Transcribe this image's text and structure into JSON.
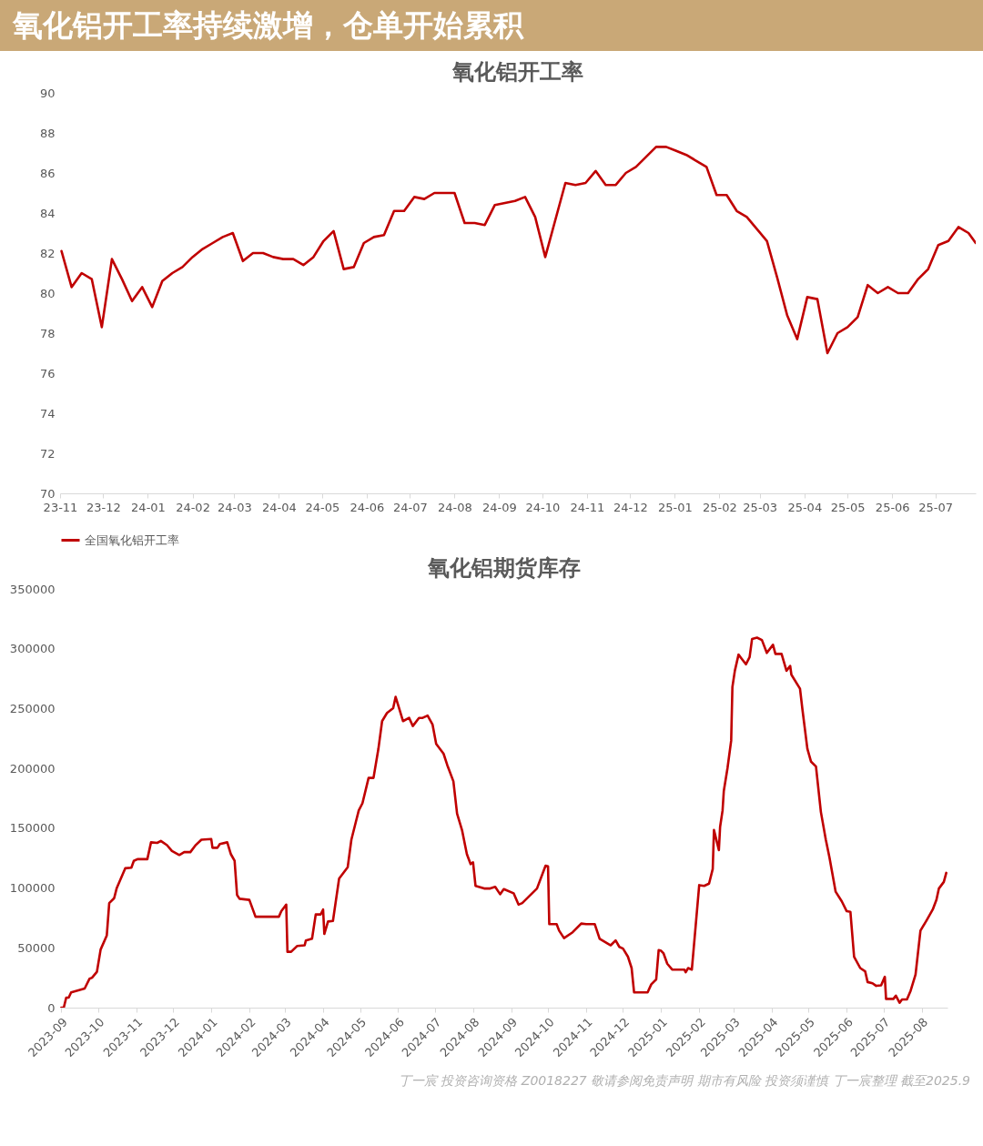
{
  "chart_data": [
    {
      "type": "line",
      "title": "氧化铝开工率",
      "annotations": [
        "氧化铝开工率持续激增，仓单开始累积"
      ],
      "x": [
        "2023-11-02",
        "2023-11-09",
        "2023-11-16",
        "2023-11-23",
        "2023-11-30",
        "2023-12-07",
        "2023-12-14",
        "2023-12-21",
        "2023-12-28",
        "2024-01-04",
        "2024-01-11",
        "2024-01-18",
        "2024-01-25",
        "2024-02-01",
        "2024-02-08",
        "2024-02-15",
        "2024-02-22",
        "2024-02-29",
        "2024-03-07",
        "2024-03-14",
        "2024-03-21",
        "2024-03-28",
        "2024-04-04",
        "2024-04-11",
        "2024-04-18",
        "2024-04-25",
        "2024-05-02",
        "2024-05-09",
        "2024-05-16",
        "2024-05-23",
        "2024-05-30",
        "2024-06-06",
        "2024-06-13",
        "2024-06-20",
        "2024-06-27",
        "2024-07-04",
        "2024-07-11",
        "2024-07-18",
        "2024-07-25",
        "2024-08-01",
        "2024-08-08",
        "2024-08-15",
        "2024-08-22",
        "2024-08-29",
        "2024-09-05",
        "2024-09-12",
        "2024-09-19",
        "2024-09-26",
        "2024-10-03",
        "2024-10-17",
        "2024-10-24",
        "2024-10-31",
        "2024-11-07",
        "2024-11-14",
        "2024-11-21",
        "2024-11-28",
        "2024-12-05",
        "2024-12-12",
        "2024-12-19",
        "2024-12-26",
        "2025-01-02",
        "2025-01-09",
        "2025-01-16",
        "2025-01-23",
        "2025-01-30",
        "2025-02-06",
        "2025-02-13",
        "2025-02-20",
        "2025-02-27",
        "2025-03-06",
        "2025-03-13",
        "2025-03-20",
        "2025-03-27",
        "2025-04-03",
        "2025-04-10",
        "2025-04-17",
        "2025-04-24",
        "2025-05-01",
        "2025-05-08",
        "2025-05-15",
        "2025-05-22",
        "2025-05-29",
        "2025-06-05",
        "2025-06-12",
        "2025-06-19",
        "2025-06-26",
        "2025-07-03",
        "2025-07-10",
        "2025-07-17",
        "2025-07-24",
        "2025-07-29"
      ],
      "series": [
        {
          "name": "全国氧化铝开工率",
          "color": "#c00000",
          "values": [
            82.1,
            80.3,
            81.0,
            80.7,
            78.3,
            81.7,
            80.7,
            79.6,
            80.3,
            79.3,
            80.6,
            81.0,
            81.3,
            81.8,
            82.2,
            82.5,
            82.8,
            83.0,
            81.6,
            82.0,
            82.0,
            81.8,
            81.7,
            81.7,
            81.4,
            81.8,
            82.6,
            83.1,
            81.2,
            81.3,
            82.5,
            82.8,
            82.9,
            84.1,
            84.1,
            84.8,
            84.7,
            85.0,
            85.0,
            85.0,
            83.5,
            83.5,
            83.4,
            84.4,
            84.5,
            84.6,
            84.8,
            83.8,
            81.8,
            85.5,
            85.4,
            85.5,
            86.1,
            85.4,
            85.4,
            86.0,
            86.3,
            86.8,
            87.3,
            87.3,
            87.1,
            86.9,
            86.6,
            86.3,
            84.9,
            84.9,
            84.1,
            83.8,
            83.2,
            82.6,
            80.8,
            78.9,
            77.7,
            79.8,
            79.7,
            77.0,
            78.0,
            78.3,
            78.8,
            80.4,
            80.0,
            80.3,
            80.0,
            80.0,
            80.7,
            81.2,
            82.4,
            82.6,
            83.3,
            83.0,
            82.5
          ]
        }
      ],
      "xlim": [
        "2023-11-01",
        "2025-07-29"
      ],
      "xticks": [
        {
          "value": "2023-11-01",
          "label": "23-11"
        },
        {
          "value": "2023-12-01",
          "label": "23-12"
        },
        {
          "value": "2024-01-01",
          "label": "24-01"
        },
        {
          "value": "2024-02-01",
          "label": "24-02"
        },
        {
          "value": "2024-03-01",
          "label": "24-03"
        },
        {
          "value": "2024-04-01",
          "label": "24-04"
        },
        {
          "value": "2024-05-01",
          "label": "24-05"
        },
        {
          "value": "2024-06-01",
          "label": "24-06"
        },
        {
          "value": "2024-07-01",
          "label": "24-07"
        },
        {
          "value": "2024-08-01",
          "label": "24-08"
        },
        {
          "value": "2024-09-01",
          "label": "24-09"
        },
        {
          "value": "2024-10-01",
          "label": "24-10"
        },
        {
          "value": "2024-11-01",
          "label": "24-11"
        },
        {
          "value": "2024-12-01",
          "label": "24-12"
        },
        {
          "value": "2025-01-01",
          "label": "25-01"
        },
        {
          "value": "2025-02-01",
          "label": "25-02"
        },
        {
          "value": "2025-03-01",
          "label": "25-03"
        },
        {
          "value": "2025-04-01",
          "label": "25-04"
        },
        {
          "value": "2025-05-01",
          "label": "25-05"
        },
        {
          "value": "2025-06-01",
          "label": "25-06"
        },
        {
          "value": "2025-07-01",
          "label": "25-07"
        }
      ],
      "ylim": [
        70,
        90
      ],
      "yticks": [
        70,
        72,
        74,
        76,
        78,
        80,
        82,
        84,
        86,
        88,
        90
      ],
      "grid": false,
      "legend": "bottom",
      "marker": "none",
      "line_style": "solid"
    },
    {
      "type": "line",
      "title": "氧化铝期货库存",
      "annotations": [
        "丁一宸 投资咨询资格 Z0018227 敬请参阅免责声明 期市有风险 投资须谨慎 丁一宸整理 截至2025.9"
      ],
      "x": [
        "2023-09-01",
        "2023-09-03",
        "2023-09-05",
        "2023-09-07",
        "2023-09-09",
        "2023-09-20",
        "2023-09-24",
        "2023-09-26",
        "2023-09-30",
        "2023-10-03",
        "2023-10-08",
        "2023-10-10",
        "2023-10-14",
        "2023-10-16",
        "2023-10-23",
        "2023-10-28",
        "2023-10-30",
        "2023-11-02",
        "2023-11-10",
        "2023-11-13",
        "2023-11-18",
        "2023-11-21",
        "2023-11-26",
        "2023-11-30",
        "2023-12-06",
        "2023-12-10",
        "2023-12-15",
        "2023-12-19",
        "2023-12-24",
        "2024-01-01",
        "2024-01-02",
        "2024-01-06",
        "2024-01-08",
        "2024-01-14",
        "2024-01-17",
        "2024-01-20",
        "2024-01-22",
        "2024-01-24",
        "2024-02-01",
        "2024-02-06",
        "2024-02-25",
        "2024-02-27",
        "2024-03-02",
        "2024-03-03",
        "2024-03-06",
        "2024-03-11",
        "2024-03-17",
        "2024-03-18",
        "2024-03-23",
        "2024-03-26",
        "2024-03-30",
        "2024-04-01",
        "2024-04-02",
        "2024-04-05",
        "2024-04-09",
        "2024-04-14",
        "2024-04-21",
        "2024-04-24",
        "2024-04-28",
        "2024-04-30",
        "2024-05-03",
        "2024-05-08",
        "2024-05-12",
        "2024-05-16",
        "2024-05-19",
        "2024-05-23",
        "2024-05-28",
        "2024-05-30",
        "2024-06-01",
        "2024-06-05",
        "2024-06-10",
        "2024-06-13",
        "2024-06-18",
        "2024-06-21",
        "2024-06-25",
        "2024-06-29",
        "2024-07-02",
        "2024-07-08",
        "2024-07-11",
        "2024-07-16",
        "2024-07-19",
        "2024-07-23",
        "2024-07-27",
        "2024-07-30",
        "2024-08-01",
        "2024-08-03",
        "2024-08-10",
        "2024-08-15",
        "2024-08-19",
        "2024-08-23",
        "2024-08-26",
        "2024-09-03",
        "2024-09-07",
        "2024-09-10",
        "2024-09-22",
        "2024-09-29",
        "2024-10-01",
        "2024-10-02",
        "2024-10-08",
        "2024-10-10",
        "2024-10-14",
        "2024-10-21",
        "2024-10-28",
        "2024-11-01",
        "2024-11-08",
        "2024-11-12",
        "2024-11-21",
        "2024-11-25",
        "2024-11-28",
        "2024-12-01",
        "2024-12-05",
        "2024-12-08",
        "2024-12-10",
        "2024-12-21",
        "2024-12-24",
        "2024-12-28",
        "2024-12-30",
        "2025-01-01",
        "2025-01-03",
        "2025-01-06",
        "2025-01-10",
        "2025-01-20",
        "2025-01-21",
        "2025-01-23",
        "2025-01-26",
        "2025-02-01",
        "2025-02-05",
        "2025-02-09",
        "2025-02-12",
        "2025-02-13",
        "2025-02-17",
        "2025-02-18",
        "2025-02-20",
        "2025-02-21",
        "2025-02-24",
        "2025-02-27",
        "2025-02-28",
        "2025-03-02",
        "2025-03-05",
        "2025-03-07",
        "2025-03-11",
        "2025-03-14",
        "2025-03-16",
        "2025-03-20",
        "2025-03-24",
        "2025-03-28",
        "2025-04-02",
        "2025-04-04",
        "2025-04-09",
        "2025-04-13",
        "2025-04-16",
        "2025-04-17",
        "2025-04-24",
        "2025-04-26",
        "2025-04-30",
        "2025-05-03",
        "2025-05-07",
        "2025-05-11",
        "2025-05-15",
        "2025-05-18",
        "2025-05-23",
        "2025-05-28",
        "2025-06-01",
        "2025-06-04",
        "2025-06-07",
        "2025-06-12",
        "2025-06-16",
        "2025-06-18",
        "2025-06-22",
        "2025-06-25",
        "2025-06-29",
        "2025-07-02",
        "2025-07-03",
        "2025-07-09",
        "2025-07-11",
        "2025-07-14",
        "2025-07-16",
        "2025-07-20",
        "2025-07-23",
        "2025-07-27",
        "2025-07-31",
        "2025-08-05",
        "2025-08-10",
        "2025-08-13",
        "2025-08-15",
        "2025-08-19",
        "2025-08-21"
      ],
      "series": [
        {
          "color": "#c00000",
          "values": [
            0,
            0,
            8400,
            8400,
            12800,
            16000,
            24200,
            25000,
            30000,
            48600,
            60300,
            87400,
            91500,
            99600,
            116500,
            117000,
            122700,
            124100,
            124100,
            138200,
            137700,
            139300,
            135800,
            130900,
            127600,
            130000,
            130000,
            135500,
            140400,
            140900,
            133600,
            133600,
            136800,
            138200,
            128200,
            122700,
            94200,
            91000,
            90100,
            76000,
            76000,
            80600,
            86100,
            46700,
            46700,
            51600,
            52100,
            56200,
            57600,
            77900,
            77900,
            82000,
            61600,
            72000,
            72500,
            107800,
            117300,
            140400,
            156700,
            164800,
            170800,
            192000,
            192000,
            216400,
            239500,
            246300,
            250300,
            259800,
            253000,
            239500,
            242200,
            235400,
            242200,
            242200,
            244100,
            236800,
            220500,
            212300,
            202800,
            189200,
            162100,
            148500,
            128200,
            120000,
            121400,
            101800,
            99600,
            99600,
            101000,
            94800,
            99100,
            95600,
            86100,
            87400,
            99600,
            118700,
            118100,
            69800,
            69800,
            64400,
            58100,
            63000,
            70300,
            69800,
            69800,
            57600,
            52100,
            56200,
            50800,
            49400,
            42600,
            33100,
            12800,
            12800,
            19500,
            23600,
            48100,
            47500,
            45300,
            36700,
            31800,
            31800,
            29600,
            33100,
            31800,
            102400,
            101800,
            103700,
            115900,
            148500,
            131700,
            151200,
            164800,
            181100,
            200100,
            223200,
            268000,
            281600,
            295100,
            292400,
            287000,
            293000,
            308200,
            309300,
            307300,
            296500,
            303300,
            295700,
            295700,
            281600,
            285700,
            278300,
            266600,
            249000,
            216400,
            205600,
            201500,
            163500,
            140400,
            125400,
            96900,
            88800,
            80600,
            80100,
            42600,
            33100,
            30400,
            21400,
            20400,
            18200,
            18700,
            25800,
            7300,
            7300,
            10000,
            4100,
            6800,
            6800,
            14100,
            27700,
            64400,
            73000,
            82000,
            90100,
            99600,
            105100,
            112700
          ]
        }
      ],
      "xlim": [
        "2023-08-31",
        "2025-08-22"
      ],
      "xticks": [
        "2023-09",
        "2023-10",
        "2023-11",
        "2023-12",
        "2024-01",
        "2024-02",
        "2024-03",
        "2024-04",
        "2024-05",
        "2024-06",
        "2024-07",
        "2024-08",
        "2024-09",
        "2024-10",
        "2024-11",
        "2024-12",
        "2025-01",
        "2025-02",
        "2025-03",
        "2025-04",
        "2025-05",
        "2025-06",
        "2025-07",
        "2025-08"
      ],
      "ylim": [
        0,
        350000
      ],
      "yticks": [
        0,
        50000,
        100000,
        150000,
        200000,
        250000,
        300000,
        350000
      ],
      "grid": false,
      "legend": false,
      "marker": "none",
      "line_style": "solid"
    }
  ]
}
